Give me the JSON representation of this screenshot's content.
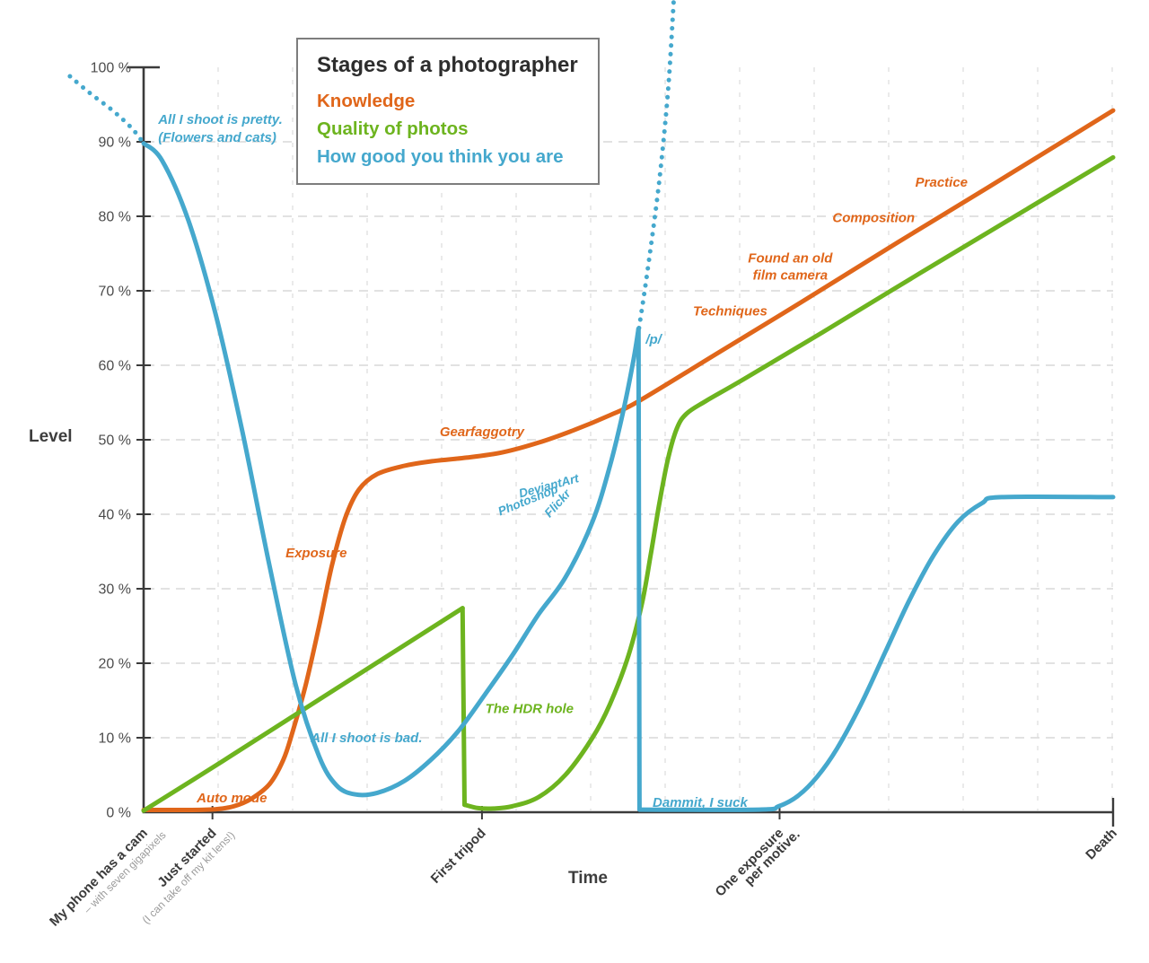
{
  "title_box": {
    "title": "Stages of a photographer",
    "items": [
      {
        "label": "Knowledge",
        "color_key": "orange"
      },
      {
        "label": "Quality of photos",
        "color_key": "green"
      },
      {
        "label": "How good you think you are",
        "color_key": "blue"
      }
    ]
  },
  "colors": {
    "orange": "#e0661a",
    "green": "#6db41f",
    "blue": "#45a8cd",
    "axis": "#3b3b3b",
    "grid_h": "#d9d9d9",
    "grid_v": "#dcdcdc",
    "tick_text": "#4c4c4c",
    "sub_text": "#9b9b9b"
  },
  "chart_data": {
    "type": "line",
    "title": "Stages of a photographer",
    "x_axis": {
      "label": "Time",
      "range": [
        0,
        100
      ],
      "milestones": [
        {
          "t": 0,
          "label": "My phone has a cam",
          "sub": "– with seven gigapixels"
        },
        {
          "t": 7.1,
          "label": "Just started",
          "sub": "(I can take off my kit lens!)"
        },
        {
          "t": 34.9,
          "label": "First tripod"
        },
        {
          "t": 65.6,
          "label": "One exposure per motive.",
          "lines": [
            "One exposure",
            "per motive."
          ]
        },
        {
          "t": 100,
          "label": "Death"
        }
      ]
    },
    "y_axis": {
      "label": "Level",
      "min": 0,
      "max": 100,
      "tick_step": 10,
      "tick_suffix": " %",
      "grid": true
    },
    "legend_position": "top-left-inside",
    "series": [
      {
        "name": "Knowledge",
        "color_key": "orange",
        "segments": [
          {
            "style": "solid",
            "points": [
              [
                0,
                0.3
              ],
              [
                4,
                0.3
              ],
              [
                7.4,
                0.4
              ],
              [
                9.3,
                0.8
              ],
              [
                11.1,
                1.8
              ],
              [
                13,
                3.8
              ],
              [
                14.4,
                7
              ],
              [
                15.3,
                10.5
              ],
              [
                16.7,
                17
              ],
              [
                18.1,
                25
              ],
              [
                19.4,
                33
              ],
              [
                20.8,
                39.5
              ],
              [
                22.2,
                43.3
              ],
              [
                24.1,
                45.4
              ],
              [
                26.9,
                46.5
              ],
              [
                29.6,
                47.1
              ],
              [
                33.3,
                47.6
              ],
              [
                37,
                48.3
              ],
              [
                40.7,
                49.6
              ],
              [
                44.4,
                51.3
              ],
              [
                48.1,
                53.3
              ],
              [
                51.1,
                55.2
              ],
              [
                59.3,
                61.7
              ],
              [
                68.5,
                69.0
              ],
              [
                77.8,
                76.5
              ],
              [
                87,
                83.8
              ],
              [
                100,
                94.2
              ]
            ]
          }
        ]
      },
      {
        "name": "Quality of photos",
        "color_key": "green",
        "segments": [
          {
            "style": "solid",
            "points": [
              [
                0,
                0.2
              ],
              [
                8.2,
                6.9
              ],
              [
                16.5,
                13.8
              ],
              [
                24.7,
                20.6
              ],
              [
                32.9,
                27.4
              ]
            ]
          },
          {
            "style": "solid",
            "points": [
              [
                32.9,
                27.4
              ],
              [
                33.1,
                1.0
              ]
            ]
          },
          {
            "style": "solid",
            "points": [
              [
                33.1,
                1.0
              ],
              [
                34.5,
                0.55
              ],
              [
                36.1,
                0.5
              ],
              [
                38,
                0.8
              ],
              [
                40.7,
                2.0
              ],
              [
                43.5,
                5.0
              ],
              [
                46.3,
                10.0
              ],
              [
                48.1,
                14.5
              ],
              [
                50,
                21.0
              ],
              [
                51.4,
                28.0
              ],
              [
                52.3,
                34.5
              ],
              [
                53.2,
                41.5
              ],
              [
                54.1,
                47.5
              ],
              [
                55,
                51.5
              ],
              [
                56,
                53.5
              ],
              [
                58,
                55.2
              ],
              [
                62,
                58.2
              ],
              [
                70,
                64.4
              ],
              [
                80,
                72.3
              ],
              [
                90,
                80.1
              ],
              [
                100,
                87.9
              ]
            ]
          }
        ]
      },
      {
        "name": "How good you think you are",
        "color_key": "blue",
        "segments": [
          {
            "style": "dotted",
            "points": [
              [
                -7.6,
                98.8
              ],
              [
                -5.6,
                96.6
              ],
              [
                -3.2,
                94.2
              ],
              [
                -1.2,
                91.8
              ],
              [
                0,
                89.8
              ]
            ]
          },
          {
            "style": "solid",
            "points": [
              [
                0,
                89.8
              ],
              [
                1.9,
                87.5
              ],
              [
                4.6,
                79.5
              ],
              [
                7.4,
                67
              ],
              [
                10.2,
                51
              ],
              [
                13,
                33
              ],
              [
                15.7,
                17
              ],
              [
                18.1,
                7.5
              ],
              [
                19.9,
                3.6
              ],
              [
                21.8,
                2.4
              ],
              [
                24.1,
                2.6
              ],
              [
                26.9,
                4.2
              ],
              [
                29.6,
                7
              ],
              [
                32.4,
                10.8
              ],
              [
                35.2,
                15.8
              ],
              [
                38,
                21
              ],
              [
                40.7,
                26.5
              ],
              [
                43.5,
                31.5
              ],
              [
                46.3,
                39
              ],
              [
                48.1,
                46.5
              ],
              [
                49.5,
                54
              ],
              [
                50.5,
                60.5
              ],
              [
                51.05,
                64.9
              ]
            ]
          },
          {
            "style": "solid",
            "points": [
              [
                51.05,
                64.9
              ],
              [
                51.15,
                0.35
              ]
            ]
          },
          {
            "style": "solid",
            "points": [
              [
                51.15,
                0.35
              ],
              [
                63.5,
                0.35
              ],
              [
                65.5,
                0.8
              ],
              [
                67.5,
                2.2
              ],
              [
                69.5,
                4.8
              ],
              [
                71.5,
                8.5
              ],
              [
                74,
                14.5
              ],
              [
                76.5,
                21.5
              ],
              [
                79,
                28.5
              ],
              [
                81.5,
                34.5
              ],
              [
                84,
                39
              ],
              [
                86.5,
                41.5
              ],
              [
                88.5,
                42.3
              ],
              [
                100,
                42.3
              ]
            ]
          },
          {
            "style": "dotted",
            "points": [
              [
                51.1,
                65
              ],
              [
                52,
                72.9
              ],
              [
                53.2,
                84.9
              ],
              [
                54.1,
                97
              ],
              [
                54.7,
                109.5
              ]
            ]
          }
        ]
      }
    ],
    "annotations": [
      {
        "name": "all-i-shoot-is-pretty",
        "lines": [
          "All I shoot is pretty.",
          "(Flowers and cats)"
        ],
        "color_key": "blue",
        "t": 1.5,
        "level": 93.0,
        "anchor": "start",
        "line_dy": 20
      },
      {
        "name": "auto-mode",
        "text": "Auto mode",
        "color_key": "orange",
        "t": 9.1,
        "level": 1.9
      },
      {
        "name": "exposure",
        "text": "Exposure",
        "color_key": "orange",
        "t": 17.8,
        "level": 34.8
      },
      {
        "name": "all-i-shoot-is-bad",
        "text": "All I shoot is bad.",
        "color_key": "blue",
        "t": 23.0,
        "level": 10.0
      },
      {
        "name": "gearfaggotry",
        "text": "Gearfaggotry",
        "color_key": "orange",
        "t": 34.9,
        "level": 51.1
      },
      {
        "name": "deviantart",
        "text": "DeviantArt",
        "color_key": "blue",
        "t": 41.9,
        "level": 43.9,
        "rotate": -15,
        "size": 13.5
      },
      {
        "name": "photoshop",
        "text": "Photoshop",
        "color_key": "blue",
        "t": 39.8,
        "level": 42.0,
        "rotate": -22,
        "size": 13.5
      },
      {
        "name": "flickr",
        "text": "Flickr",
        "color_key": "blue",
        "t": 43.0,
        "level": 41.7,
        "rotate": -48,
        "size": 13.5
      },
      {
        "name": "the-hdr-hole",
        "text": "The HDR hole",
        "color_key": "green",
        "t": 39.8,
        "level": 13.9
      },
      {
        "name": "p-board",
        "text": "/p/",
        "color_key": "blue",
        "t": 52.6,
        "level": 63.5
      },
      {
        "name": "dammit-i-suck",
        "text": "Dammit, I suck",
        "color_key": "blue",
        "t": 57.4,
        "level": 1.3
      },
      {
        "name": "techniques",
        "text": "Techniques",
        "color_key": "orange",
        "t": 60.5,
        "level": 67.3
      },
      {
        "name": "found-an-old-film-camera",
        "lines": [
          "Found an old",
          "film camera"
        ],
        "color_key": "orange",
        "t": 66.7,
        "level": 74.4,
        "line_dy": 19
      },
      {
        "name": "composition",
        "text": "Composition",
        "color_key": "orange",
        "t": 75.3,
        "level": 79.8
      },
      {
        "name": "practice",
        "text": "Practice",
        "color_key": "orange",
        "t": 82.3,
        "level": 84.6
      }
    ]
  }
}
